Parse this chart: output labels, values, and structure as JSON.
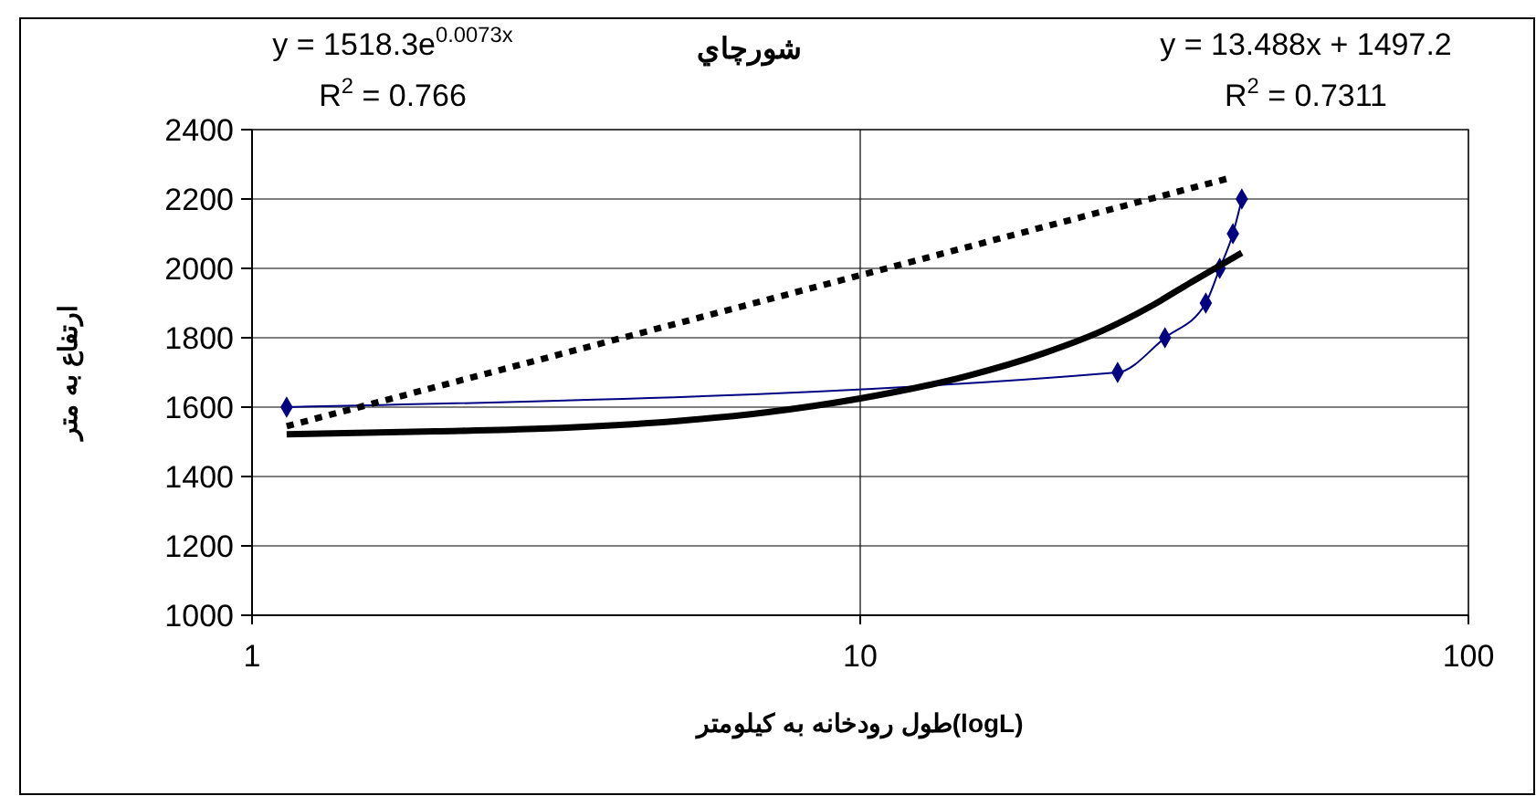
{
  "chart_data": {
    "type": "line",
    "title": "شورچاي",
    "xlabel": "طول رودخانه به كيلومتر(logL)",
    "ylabel": "ارتفاع به متر",
    "annotations": [
      "y = 1518.3e$^{0.0073x}$",
      "R$^{2}$ = 0.766",
      "y = 13.488x + 1497.2",
      "R$^{2}$ = 0.7311"
    ],
    "log": "x",
    "xlim": [
      1,
      100
    ],
    "xticks": [
      1,
      10,
      100
    ],
    "ylim": [
      1000,
      2400
    ],
    "yticks": [
      1000,
      1200,
      1400,
      1600,
      1800,
      2000,
      2200,
      2400
    ],
    "grid": true,
    "series": [
      {
        "color": "#000080",
        "marker": "diamond",
        "line_style": "solid",
        "x": [
          1.14,
          26.5,
          31.7,
          37,
          39,
          41,
          42.4
        ],
        "values": [
          1600,
          1700,
          1800,
          1900,
          2000,
          2100,
          2200
        ]
      },
      {
        "color": "#000000",
        "marker": "none",
        "line_style": "solid",
        "x": [
          1.14,
          2,
          3,
          5,
          7,
          10,
          15,
          20,
          25,
          30,
          35,
          42.4
        ],
        "values": [
          1522,
          1530,
          1538,
          1560,
          1585,
          1625,
          1690,
          1755,
          1820,
          1890,
          1960,
          2045
        ]
      },
      {
        "color": "#000000",
        "marker": "none",
        "line_style": "dotted",
        "x": [
          1.14,
          40.4
        ],
        "values": [
          1545,
          2260
        ]
      }
    ]
  }
}
